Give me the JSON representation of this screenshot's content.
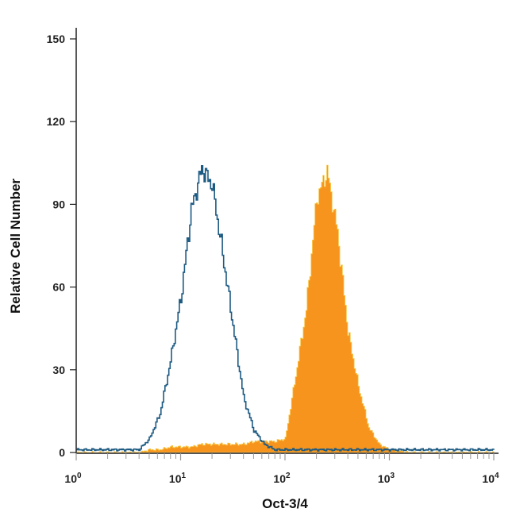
{
  "chart_data": {
    "type": "area",
    "title": "",
    "xlabel": "Oct-3/4",
    "ylabel": "Relative Cell Number",
    "xscale": "log",
    "xlim": [
      1,
      10000
    ],
    "ylim": [
      0,
      150
    ],
    "yticks": [
      0,
      30,
      60,
      90,
      120,
      150
    ],
    "xticks": [
      {
        "base": "10",
        "exp": "0"
      },
      {
        "base": "10",
        "exp": "1"
      },
      {
        "base": "10",
        "exp": "2"
      },
      {
        "base": "10",
        "exp": "3"
      },
      {
        "base": "10",
        "exp": "4"
      }
    ],
    "grid": false,
    "x_log10": [
      0.0,
      0.1,
      0.2,
      0.3,
      0.4,
      0.5,
      0.6,
      0.7,
      0.8,
      0.9,
      1.0,
      1.1,
      1.2,
      1.3,
      1.4,
      1.5,
      1.6,
      1.7,
      1.8,
      1.9,
      2.0,
      2.1,
      2.2,
      2.3,
      2.4,
      2.5,
      2.6,
      2.7,
      2.8,
      2.9,
      3.0,
      3.1,
      3.2,
      3.3,
      3.4,
      3.5,
      3.6,
      3.7,
      3.8,
      3.9,
      4.0
    ],
    "series": [
      {
        "style": "outline",
        "color": "#1d5a82",
        "values": [
          1,
          1,
          1,
          1,
          1,
          1,
          1,
          5,
          14,
          33,
          56,
          88,
          103,
          97,
          72,
          46,
          20,
          8,
          3,
          1,
          1,
          1,
          1,
          1,
          1,
          1,
          1,
          1,
          1,
          1,
          1,
          1,
          1,
          1,
          1,
          1,
          1,
          1,
          1,
          1,
          1
        ]
      },
      {
        "style": "filled",
        "color": "#f7941d",
        "values": [
          0,
          0,
          0,
          0,
          0,
          0,
          0,
          1,
          1,
          2,
          2,
          2,
          3,
          3,
          3,
          3,
          3,
          4,
          4,
          4,
          5,
          28,
          52,
          92,
          102,
          80,
          44,
          24,
          9,
          3,
          1,
          0.5,
          0,
          0,
          0,
          0,
          0,
          0,
          0,
          0,
          0
        ]
      }
    ]
  }
}
